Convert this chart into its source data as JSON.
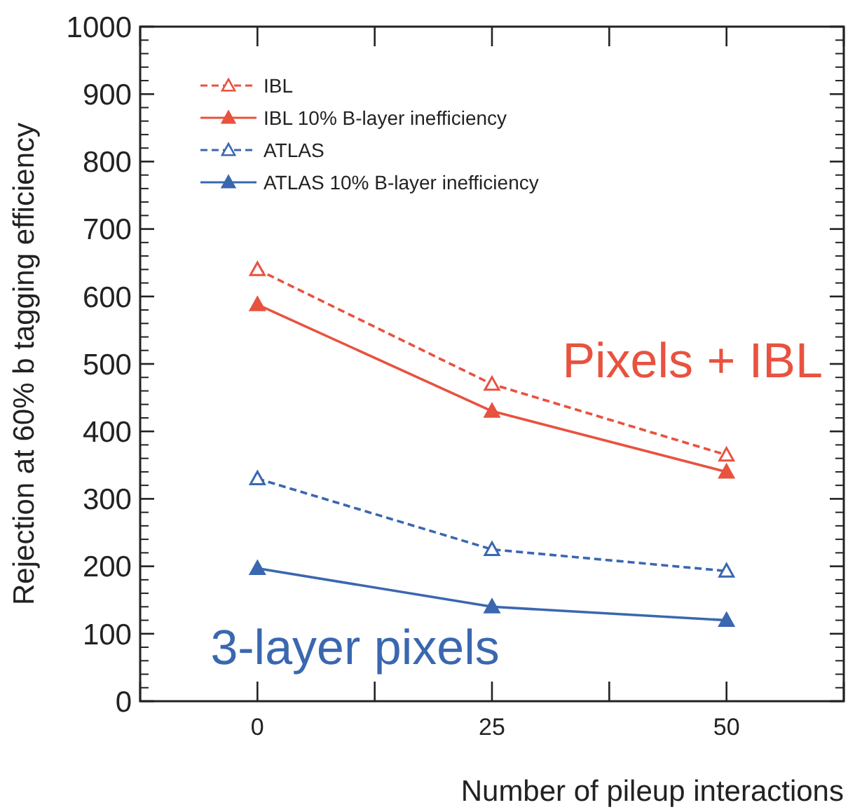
{
  "chart_data": {
    "type": "line",
    "xlabel": "Number of pileup interactions",
    "ylabel": "Rejection at 60% b tagging efficiency",
    "x": [
      0,
      25,
      50
    ],
    "series": [
      {
        "name": "IBL",
        "color": "#e8523f",
        "values": [
          640,
          470,
          365
        ],
        "line_style": "dashed"
      },
      {
        "name": "IBL 10% B-layer inefficiency",
        "color": "#e8523f",
        "values": [
          588,
          430,
          340
        ],
        "line_style": "solid"
      },
      {
        "name": "ATLAS",
        "color": "#3a67b0",
        "values": [
          330,
          225,
          193
        ],
        "line_style": "dashed"
      },
      {
        "name": "ATLAS 10% B-layer inefficiency",
        "color": "#3a67b0",
        "values": [
          197,
          140,
          120
        ],
        "line_style": "solid"
      }
    ],
    "annotations": [
      "Pixels + IBL",
      "3-layer pixels"
    ],
    "xlim": [
      -12.5,
      62.5
    ],
    "xticks": [
      {
        "value": -12.5,
        "label": null
      },
      0,
      {
        "value": 12.5,
        "label": null
      },
      25,
      {
        "value": 37.5,
        "label": null
      },
      50,
      {
        "value": 62.5,
        "label": null
      }
    ],
    "ylim": [
      0,
      1000
    ],
    "yticks": [
      0,
      100,
      200,
      300,
      400,
      500,
      600,
      700,
      800,
      900,
      1000
    ],
    "marker": "triangle",
    "legend": "top left"
  }
}
